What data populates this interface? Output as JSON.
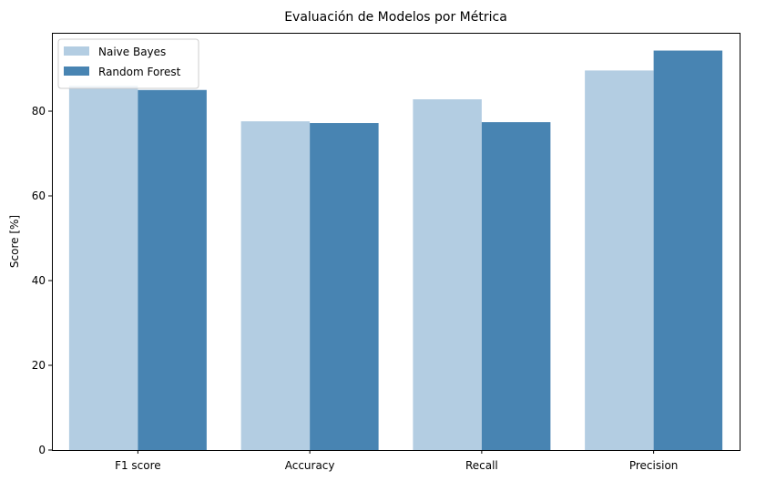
{
  "chart_data": {
    "type": "bar",
    "title": "Evaluación de Modelos por Métrica",
    "xlabel": "",
    "ylabel": "Score [%]",
    "categories": [
      "F1 score",
      "Accuracy",
      "Recall",
      "Precision"
    ],
    "series": [
      {
        "name": "Naive Bayes",
        "color": "#b3cde2",
        "values": [
          86.0,
          77.6,
          82.8,
          89.6
        ]
      },
      {
        "name": "Random Forest",
        "color": "#4884b2",
        "values": [
          85.0,
          77.2,
          77.4,
          94.3
        ]
      }
    ],
    "ylim": [
      0,
      98.5
    ],
    "yticks": [
      0,
      20,
      40,
      60,
      80
    ],
    "grid": false,
    "legend_position": "top-left"
  }
}
